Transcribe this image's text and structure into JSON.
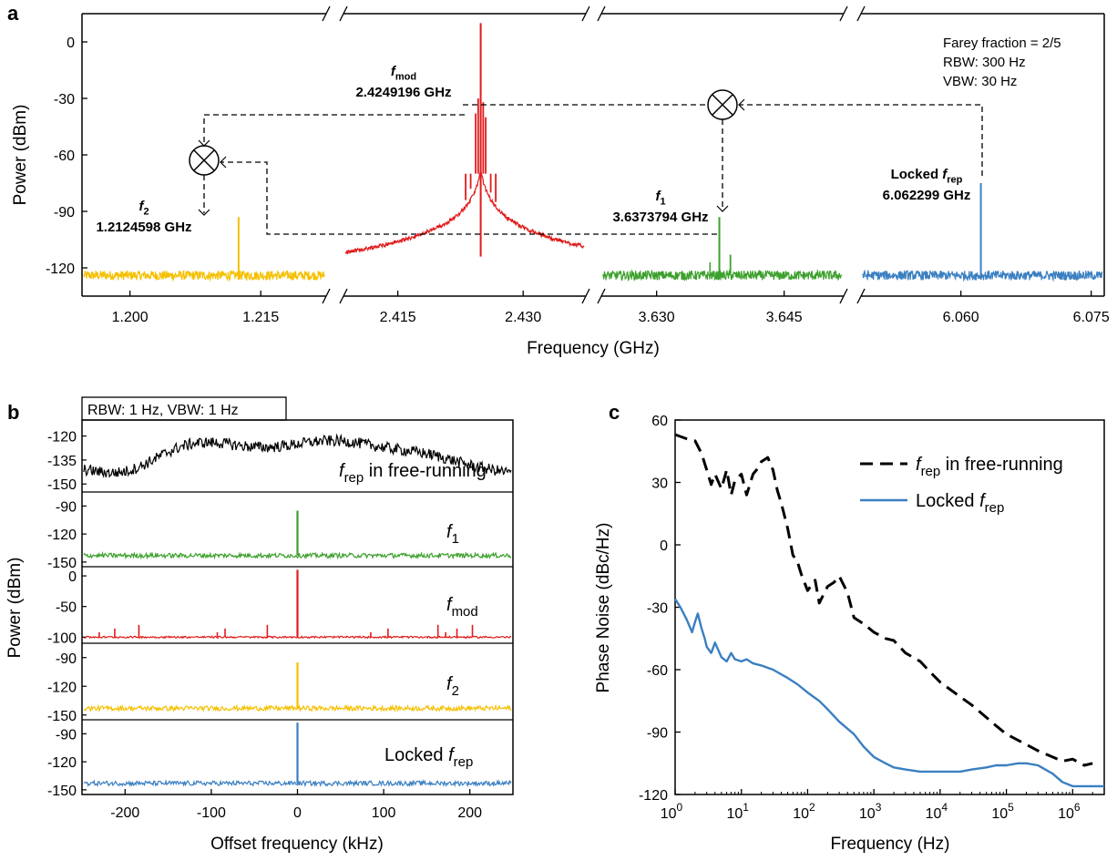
{
  "colors": {
    "yellow": "#f5c000",
    "red": "#e01b1b",
    "green": "#3ca02c",
    "blue": "#3a7fc1",
    "black": "#000000"
  },
  "panel_labels": {
    "a": "a",
    "b": "b",
    "c": "c"
  },
  "chart_data": [
    {
      "panel": "a",
      "type": "line",
      "xlabel": "Frequency (GHz)",
      "ylabel": "Power (dBm)",
      "ylim": [
        -135,
        15
      ],
      "yticks": [
        0,
        -30,
        -60,
        -90,
        -120
      ],
      "ytick_labels": [
        "0",
        "-30",
        "-60",
        "-90",
        "-120"
      ],
      "broken_axis": true,
      "info_box": [
        "Farey fraction = 2/5",
        "RBW: 300 Hz",
        "VBW: 30 Hz"
      ],
      "segments": [
        {
          "name": "f2",
          "color": "yellow",
          "xlim": [
            1.1945,
            1.2225
          ],
          "xticks": [
            1.2,
            1.215
          ],
          "xtick_labels": [
            "1.200",
            "1.215"
          ],
          "noise_floor": -124,
          "peak_x": 1.2124598,
          "peak_y": -93,
          "label": "f",
          "label_sub": "2",
          "value_label": "1.2124598 GHz"
        },
        {
          "name": "fmod",
          "color": "red",
          "xlim": [
            2.4085,
            2.4375
          ],
          "xticks": [
            2.415,
            2.43
          ],
          "xtick_labels": [
            "2.415",
            "2.430"
          ],
          "noise_floor": -114,
          "peak_x": 2.4249196,
          "peak_y": 10,
          "label": "f",
          "label_sub": "mod",
          "value_label": "2.4249196 GHz"
        },
        {
          "name": "f1",
          "color": "green",
          "xlim": [
            3.6235,
            3.652
          ],
          "xticks": [
            3.63,
            3.645
          ],
          "xtick_labels": [
            "3.630",
            "3.645"
          ],
          "noise_floor": -124,
          "peak_x": 3.6373794,
          "peak_y": -93,
          "label": "f",
          "label_sub": "1",
          "value_label": "3.6373794 GHz"
        },
        {
          "name": "frep",
          "color": "blue",
          "xlim": [
            6.0485,
            6.0765
          ],
          "xticks": [
            6.06,
            6.075
          ],
          "xtick_labels": [
            "6.060",
            "6.075"
          ],
          "noise_floor": -124,
          "peak_x": 6.062299,
          "peak_y": -75,
          "label": "Locked f",
          "label_sub": "rep",
          "value_label": "6.062299 GHz"
        }
      ]
    },
    {
      "panel": "b",
      "type": "line",
      "xlabel": "Offset frequency (kHz)",
      "ylabel": "Power (dBm)",
      "xlim": [
        -250,
        250
      ],
      "xticks": [
        -200,
        -100,
        0,
        100,
        200
      ],
      "xtick_labels": [
        "-200",
        "-100",
        "0",
        "100",
        "200"
      ],
      "header_box": "RBW: 1 Hz, VBW: 1 Hz",
      "series": [
        {
          "name_main": "f",
          "name_sub": "rep",
          "name_suffix": " in free-running",
          "color": "black",
          "ylim": [
            -155,
            -110
          ],
          "yticks": [
            -120,
            -135,
            -150
          ],
          "ytick_labels": [
            "-120",
            "-135",
            "-150"
          ],
          "floor": -138,
          "peak": null
        },
        {
          "name_main": "f",
          "name_sub": "1",
          "name_suffix": "",
          "color": "green",
          "ylim": [
            -155,
            -75
          ],
          "yticks": [
            -90,
            -120,
            -150
          ],
          "ytick_labels": [
            "-90",
            "-120",
            "-150"
          ],
          "floor": -143,
          "peak": -95
        },
        {
          "name_main": "f",
          "name_sub": "mod",
          "name_suffix": "",
          "color": "red",
          "ylim": [
            -110,
            15
          ],
          "yticks": [
            0,
            -50,
            -100
          ],
          "ytick_labels": [
            "0",
            "-50",
            "-100"
          ],
          "floor": -100,
          "peak": 10
        },
        {
          "name_main": "f",
          "name_sub": "2",
          "name_suffix": "",
          "color": "yellow",
          "ylim": [
            -155,
            -75
          ],
          "yticks": [
            -90,
            -120,
            -150
          ],
          "ytick_labels": [
            "-90",
            "-120",
            "-150"
          ],
          "floor": -143,
          "peak": -95
        },
        {
          "name_main": "Locked f",
          "name_sub": "rep",
          "name_suffix": "",
          "color": "blue",
          "ylim": [
            -155,
            -75
          ],
          "yticks": [
            -90,
            -120,
            -150
          ],
          "ytick_labels": [
            "-90",
            "-120",
            "-150"
          ],
          "floor": -143,
          "peak": -78
        }
      ]
    },
    {
      "panel": "c",
      "type": "line",
      "xlabel": "Frequency (Hz)",
      "ylabel": "Phase Noise (dBc/Hz)",
      "xscale": "log",
      "xlim": [
        1,
        3000000
      ],
      "ylim": [
        -120,
        60
      ],
      "xtick_base": "10",
      "xtick_exponents": [
        "0",
        "1",
        "2",
        "3",
        "4",
        "5",
        "6"
      ],
      "yticks": [
        60,
        30,
        0,
        -30,
        -60,
        -90,
        -120
      ],
      "ytick_labels": [
        "60",
        "30",
        "0",
        "-30",
        "-60",
        "-90",
        "-120"
      ],
      "legend_position": "top-right",
      "series": [
        {
          "name_main": "f",
          "name_sub": "rep",
          "name_suffix": " in free-running",
          "style": "dashed",
          "color": "black",
          "x": [
            1,
            1.5,
            2,
            2.5,
            3,
            3.5,
            4,
            5,
            6,
            7,
            8,
            10,
            12,
            15,
            18,
            20,
            25,
            30,
            35,
            40,
            50,
            60,
            70,
            80,
            100,
            130,
            150,
            200,
            250,
            300,
            400,
            500,
            700,
            1000,
            1500,
            2000,
            3000,
            5000,
            7000,
            10000,
            20000,
            30000,
            50000,
            70000,
            100000,
            200000,
            300000,
            500000,
            700000,
            1000000,
            1500000,
            2000000
          ],
          "y": [
            53,
            51,
            50,
            44,
            36,
            29,
            34,
            27,
            36,
            24,
            31,
            34,
            24,
            34,
            37,
            40,
            42,
            36,
            26,
            20,
            8,
            -5,
            -8,
            -14,
            -22,
            -17,
            -28,
            -20,
            -18,
            -15,
            -23,
            -35,
            -38,
            -42,
            -45,
            -46,
            -52,
            -56,
            -61,
            -66,
            -73,
            -77,
            -83,
            -87,
            -91,
            -96,
            -99,
            -102,
            -104,
            -103,
            -106,
            -105
          ]
        },
        {
          "name_main": "Locked f",
          "name_sub": "rep",
          "name_suffix": "",
          "style": "solid",
          "color": "blue",
          "x": [
            1,
            1.2,
            1.5,
            1.8,
            2,
            2.2,
            2.5,
            2.8,
            3,
            3.5,
            4,
            5,
            6,
            7,
            8,
            10,
            12,
            15,
            20,
            30,
            50,
            70,
            100,
            150,
            200,
            300,
            500,
            700,
            1000,
            1500,
            2000,
            3000,
            5000,
            10000,
            20000,
            30000,
            50000,
            70000,
            100000,
            150000,
            200000,
            300000,
            500000,
            700000,
            1000000,
            2000000,
            3000000
          ],
          "y": [
            -26,
            -30,
            -36,
            -42,
            -37,
            -33,
            -40,
            -45,
            -49,
            -52,
            -47,
            -54,
            -56,
            -52,
            -55,
            -56,
            -55,
            -57,
            -58,
            -60,
            -64,
            -67,
            -71,
            -75,
            -79,
            -85,
            -91,
            -97,
            -102,
            -105,
            -107,
            -108,
            -109,
            -109,
            -109,
            -108,
            -107,
            -106,
            -106,
            -105,
            -105,
            -106,
            -110,
            -114,
            -116,
            -116,
            -116
          ]
        }
      ]
    }
  ]
}
